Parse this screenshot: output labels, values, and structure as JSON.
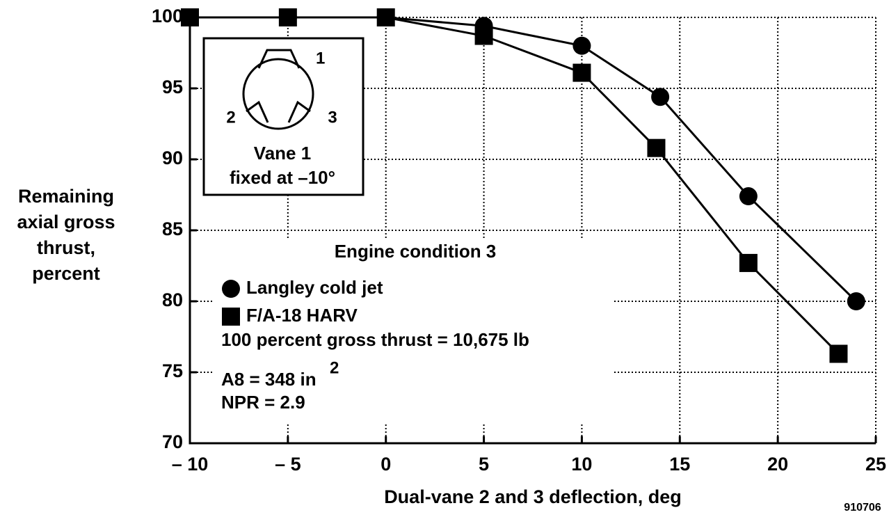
{
  "chart_data": {
    "type": "line",
    "xlabel": "Dual-vane 2 and 3 deflection, deg",
    "ylabel": [
      "Remaining",
      "axial gross",
      "thrust,",
      "percent"
    ],
    "series": [
      {
        "name": "Langley cold jet",
        "color": "#000000",
        "marker": "circle",
        "x": [
          -10,
          -5,
          0,
          5,
          10,
          14,
          18.5,
          24
        ],
        "values": [
          100,
          100,
          100,
          99.4,
          98,
          94.4,
          87.4,
          80
        ]
      },
      {
        "name": "F/A-18 HARV",
        "color": "#000000",
        "marker": "square",
        "x": [
          -10,
          -5,
          0,
          5,
          10,
          13.8,
          18.5,
          23.1
        ],
        "values": [
          100,
          100,
          100,
          98.7,
          96.1,
          90.8,
          82.7,
          76.3
        ]
      }
    ],
    "xlim": [
      -10,
      25
    ],
    "xticks": [
      {
        "value": -10,
        "label": "– 10"
      },
      {
        "value": -5,
        "label": "– 5"
      },
      0,
      5,
      10,
      15,
      20,
      25
    ],
    "ylim": [
      70,
      100
    ],
    "yticks": [
      70,
      75,
      80,
      85,
      90,
      95,
      100
    ],
    "grid": true,
    "annotations": {
      "condition": "Engine condition 3",
      "thrust": "100 percent gross thrust = 10,675 lb",
      "area": "A8 = 348 in",
      "area_exponent": "2",
      "npr": "NPR = 2.9"
    },
    "inset": {
      "vane1": "1",
      "vane2": "2",
      "vane3": "3",
      "caption": [
        "Vane 1",
        "fixed at –10°"
      ]
    },
    "figure_number": "910706"
  }
}
